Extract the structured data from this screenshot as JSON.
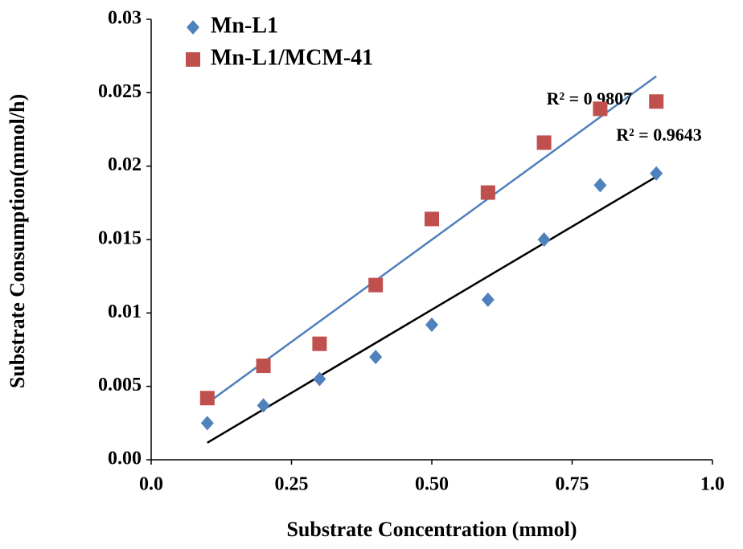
{
  "chart_data": {
    "type": "scatter",
    "x_label": "Substrate Concentration (mmol)",
    "y_label": "Substrate Consumption(mmol/h)",
    "xlim": [
      0,
      1.0
    ],
    "xticks": [
      {
        "value": 0,
        "label": "0.0"
      },
      0.25,
      {
        "value": 0.5,
        "label": "0.50"
      },
      0.75,
      {
        "value": 1.0,
        "label": "1.0"
      }
    ],
    "ylim": [
      0,
      0.03
    ],
    "yticks": [
      {
        "value": 0,
        "label": "0.00"
      },
      0.005,
      0.01,
      0.015,
      0.02,
      0.025,
      0.03
    ],
    "grid": false,
    "legend": "upper left",
    "series": [
      {
        "name": "Mn-L1",
        "color": "#4f81bd",
        "marker": "diamond",
        "trendline": "linear",
        "trendline_color": "#000000",
        "trendline_label": "R² = 0.9643",
        "x": [
          0.1,
          0.2,
          0.3,
          0.4,
          0.5,
          0.6,
          0.7,
          0.8,
          0.9
        ],
        "values": [
          0.0025,
          0.0037,
          0.0055,
          0.007,
          0.0092,
          0.0109,
          0.015,
          0.0187,
          0.0195
        ]
      },
      {
        "name": "Mn-L1/MCM-41",
        "color": "#c0504d",
        "marker": "square",
        "trendline": "linear",
        "trendline_color": "#4f81bd",
        "trendline_label": "R² = 0.9807",
        "x": [
          0.1,
          0.2,
          0.3,
          0.4,
          0.5,
          0.6,
          0.7,
          0.8,
          0.9
        ],
        "values": [
          0.0042,
          0.0064,
          0.0079,
          0.0119,
          0.0164,
          0.0182,
          0.0216,
          0.0239,
          0.0244
        ]
      }
    ]
  }
}
